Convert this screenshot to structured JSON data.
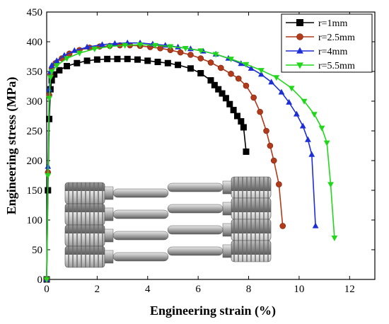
{
  "chart_data": {
    "type": "line",
    "xlabel": "Engineering strain (%)",
    "ylabel": "Engineering stress (MPa)",
    "xlim": [
      0,
      13
    ],
    "ylim": [
      0,
      450
    ],
    "xticks": [
      0,
      2,
      4,
      6,
      8,
      10,
      12
    ],
    "yticks": [
      0,
      50,
      100,
      150,
      200,
      250,
      300,
      350,
      400,
      450
    ],
    "legend_position": "top-right",
    "series": [
      {
        "name": "r=1mm",
        "color": "#000000",
        "marker": "square",
        "x": [
          0,
          0.05,
          0.1,
          0.15,
          0.2,
          0.3,
          0.5,
          0.8,
          1.2,
          1.6,
          2.0,
          2.4,
          2.8,
          3.2,
          3.6,
          4.0,
          4.4,
          4.8,
          5.2,
          5.7,
          6.1,
          6.5,
          6.65,
          6.8,
          6.95,
          7.1,
          7.25,
          7.4,
          7.55,
          7.7,
          7.8,
          7.9
        ],
        "y": [
          0,
          150,
          270,
          320,
          335,
          345,
          352,
          359,
          364,
          368,
          370,
          371,
          371,
          371,
          370,
          368,
          366,
          364,
          361,
          355,
          347,
          335,
          327,
          320,
          313,
          305,
          295,
          285,
          275,
          266,
          256,
          215
        ]
      },
      {
        "name": "r=2.5mm",
        "color": "#b03a1a",
        "marker": "circle",
        "x": [
          0,
          0.05,
          0.1,
          0.15,
          0.2,
          0.35,
          0.6,
          0.9,
          1.3,
          1.7,
          2.1,
          2.5,
          2.9,
          3.3,
          3.7,
          4.1,
          4.5,
          4.9,
          5.3,
          5.7,
          6.1,
          6.5,
          6.9,
          7.3,
          7.6,
          7.9,
          8.2,
          8.45,
          8.7,
          8.85,
          9.0,
          9.2,
          9.35
        ],
        "y": [
          0,
          180,
          310,
          345,
          355,
          364,
          372,
          380,
          386,
          390,
          392,
          393,
          394,
          394,
          393,
          391,
          389,
          386,
          382,
          378,
          372,
          365,
          356,
          346,
          338,
          326,
          306,
          282,
          250,
          225,
          200,
          160,
          90
        ]
      },
      {
        "name": "r=4mm",
        "color": "#1c2fd6",
        "marker": "triangle-up",
        "x": [
          0,
          0.05,
          0.1,
          0.15,
          0.2,
          0.4,
          0.7,
          1.1,
          1.6,
          2.2,
          2.7,
          3.2,
          3.7,
          4.2,
          4.7,
          5.2,
          5.7,
          6.2,
          6.7,
          7.2,
          7.7,
          8.1,
          8.5,
          8.9,
          9.3,
          9.6,
          9.9,
          10.15,
          10.35,
          10.5,
          10.65
        ],
        "y": [
          0,
          190,
          320,
          350,
          360,
          368,
          377,
          385,
          391,
          395,
          397,
          398,
          398,
          396,
          394,
          391,
          388,
          384,
          379,
          372,
          363,
          355,
          345,
          332,
          315,
          298,
          278,
          258,
          235,
          210,
          90
        ]
      },
      {
        "name": "r=5.5mm",
        "color": "#22d61c",
        "marker": "triangle-down",
        "x": [
          0,
          0.05,
          0.1,
          0.15,
          0.2,
          0.4,
          0.8,
          1.3,
          1.9,
          2.5,
          3.1,
          3.7,
          4.3,
          4.9,
          5.5,
          6.1,
          6.7,
          7.3,
          7.9,
          8.5,
          9.1,
          9.7,
          10.2,
          10.6,
          10.9,
          11.1,
          11.25,
          11.4
        ],
        "y": [
          0,
          175,
          305,
          340,
          350,
          360,
          372,
          381,
          388,
          392,
          394,
          395,
          394,
          392,
          389,
          385,
          379,
          371,
          362,
          352,
          340,
          322,
          300,
          278,
          255,
          230,
          160,
          70
        ]
      }
    ]
  }
}
